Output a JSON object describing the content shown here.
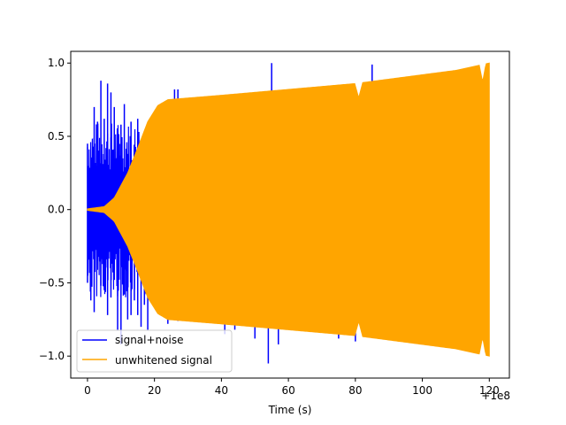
{
  "chart_data": {
    "type": "line",
    "title": "",
    "xlabel": "Time (s)",
    "ylabel": "",
    "x_offset_label": "+1e8",
    "xlim": [
      -5,
      126
    ],
    "ylim": [
      -1.15,
      1.08
    ],
    "x_ticks": [
      0,
      20,
      40,
      60,
      80,
      100,
      120
    ],
    "y_ticks": [
      {
        "value": 1.0,
        "label": "1.0"
      },
      {
        "value": 0.5,
        "label": "0.5"
      },
      {
        "value": 0.0,
        "label": "0.0"
      },
      {
        "value": -0.5,
        "label": "−0.5"
      },
      {
        "value": -1.0,
        "label": "−1.0"
      }
    ],
    "legend_position": "lower-left",
    "series": [
      {
        "name": "signal+noise",
        "color": "#0000ff",
        "x_range": [
          0,
          120
        ],
        "peaks_positive": [
          [
            0,
            0.45
          ],
          [
            2,
            0.7
          ],
          [
            3,
            0.6
          ],
          [
            4,
            0.88
          ],
          [
            5,
            0.62
          ],
          [
            6,
            0.86
          ],
          [
            7,
            0.8
          ],
          [
            8,
            0.7
          ],
          [
            9,
            0.5
          ],
          [
            10,
            0.58
          ],
          [
            11,
            0.72
          ],
          [
            12,
            0.38
          ],
          [
            13,
            0.6
          ],
          [
            14,
            0.28
          ],
          [
            15,
            0.62
          ],
          [
            17,
            0.45
          ],
          [
            19,
            0.5
          ],
          [
            20,
            0.36
          ],
          [
            22,
            0.72
          ],
          [
            26,
            0.82
          ],
          [
            27,
            0.82
          ],
          [
            30,
            0.76
          ],
          [
            41,
            0.78
          ],
          [
            50,
            0.8
          ],
          [
            55,
            1.0
          ],
          [
            59,
            0.82
          ],
          [
            75,
            0.82
          ],
          [
            85,
            0.99
          ]
        ],
        "peaks_negative": [
          [
            0,
            -0.5
          ],
          [
            1,
            -0.62
          ],
          [
            2,
            -0.7
          ],
          [
            3,
            -0.35
          ],
          [
            4,
            -0.52
          ],
          [
            5,
            -0.55
          ],
          [
            6,
            -0.72
          ],
          [
            7,
            -0.6
          ],
          [
            8,
            -0.48
          ],
          [
            9,
            -0.82
          ],
          [
            10,
            -0.92
          ],
          [
            11,
            -0.58
          ],
          [
            12,
            -0.75
          ],
          [
            13,
            -0.72
          ],
          [
            14,
            -0.62
          ],
          [
            15,
            -0.72
          ],
          [
            16,
            -0.8
          ],
          [
            17,
            -0.65
          ],
          [
            18,
            -0.82
          ],
          [
            20,
            -0.58
          ],
          [
            24,
            -0.78
          ],
          [
            27,
            -0.76
          ],
          [
            41,
            -0.85
          ],
          [
            44,
            -0.82
          ],
          [
            50,
            -0.88
          ],
          [
            54,
            -1.05
          ],
          [
            57,
            -0.92
          ],
          [
            75,
            -0.88
          ],
          [
            80,
            -0.9
          ]
        ]
      },
      {
        "name": "unwhitened signal",
        "color": "#ffa500",
        "x_range": [
          0,
          120
        ],
        "envelope": [
          [
            0,
            0.005
          ],
          [
            5,
            0.02
          ],
          [
            8,
            0.08
          ],
          [
            12,
            0.25
          ],
          [
            15,
            0.42
          ],
          [
            18,
            0.6
          ],
          [
            21,
            0.71
          ],
          [
            24,
            0.75
          ],
          [
            40,
            0.78
          ],
          [
            60,
            0.82
          ],
          [
            80,
            0.86
          ],
          [
            100,
            0.92
          ],
          [
            110,
            0.95
          ],
          [
            118,
            0.99
          ],
          [
            120,
            1.0
          ]
        ]
      }
    ]
  }
}
